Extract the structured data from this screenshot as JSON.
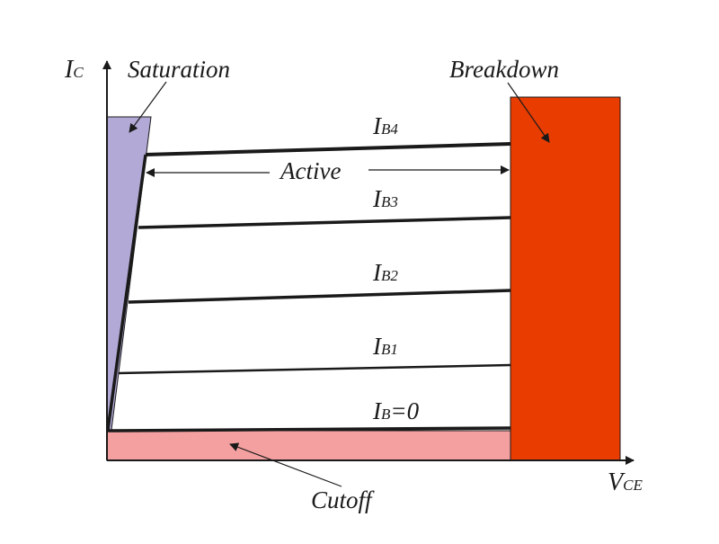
{
  "colors": {
    "background": "#ffffff",
    "saturation": "#b3a9d6",
    "breakdown": "#e83c00",
    "cutoff": "#f5a0a0",
    "axes": "#1a1a1a",
    "curves": "#1a1a1a"
  },
  "axes": {
    "y_main": "I",
    "y_sub": "C",
    "x_main": "V",
    "x_sub": "CE"
  },
  "regions": {
    "saturation": "Saturation",
    "breakdown": "Breakdown",
    "active": "Active",
    "cutoff": "Cutoff"
  },
  "curves": [
    {
      "main": "I",
      "sub": "B4",
      "suffix": ""
    },
    {
      "main": "I",
      "sub": "B3",
      "suffix": ""
    },
    {
      "main": "I",
      "sub": "B2",
      "suffix": ""
    },
    {
      "main": "I",
      "sub": "B1",
      "suffix": ""
    },
    {
      "main": "I",
      "sub": "B",
      "suffix": "=0"
    }
  ]
}
